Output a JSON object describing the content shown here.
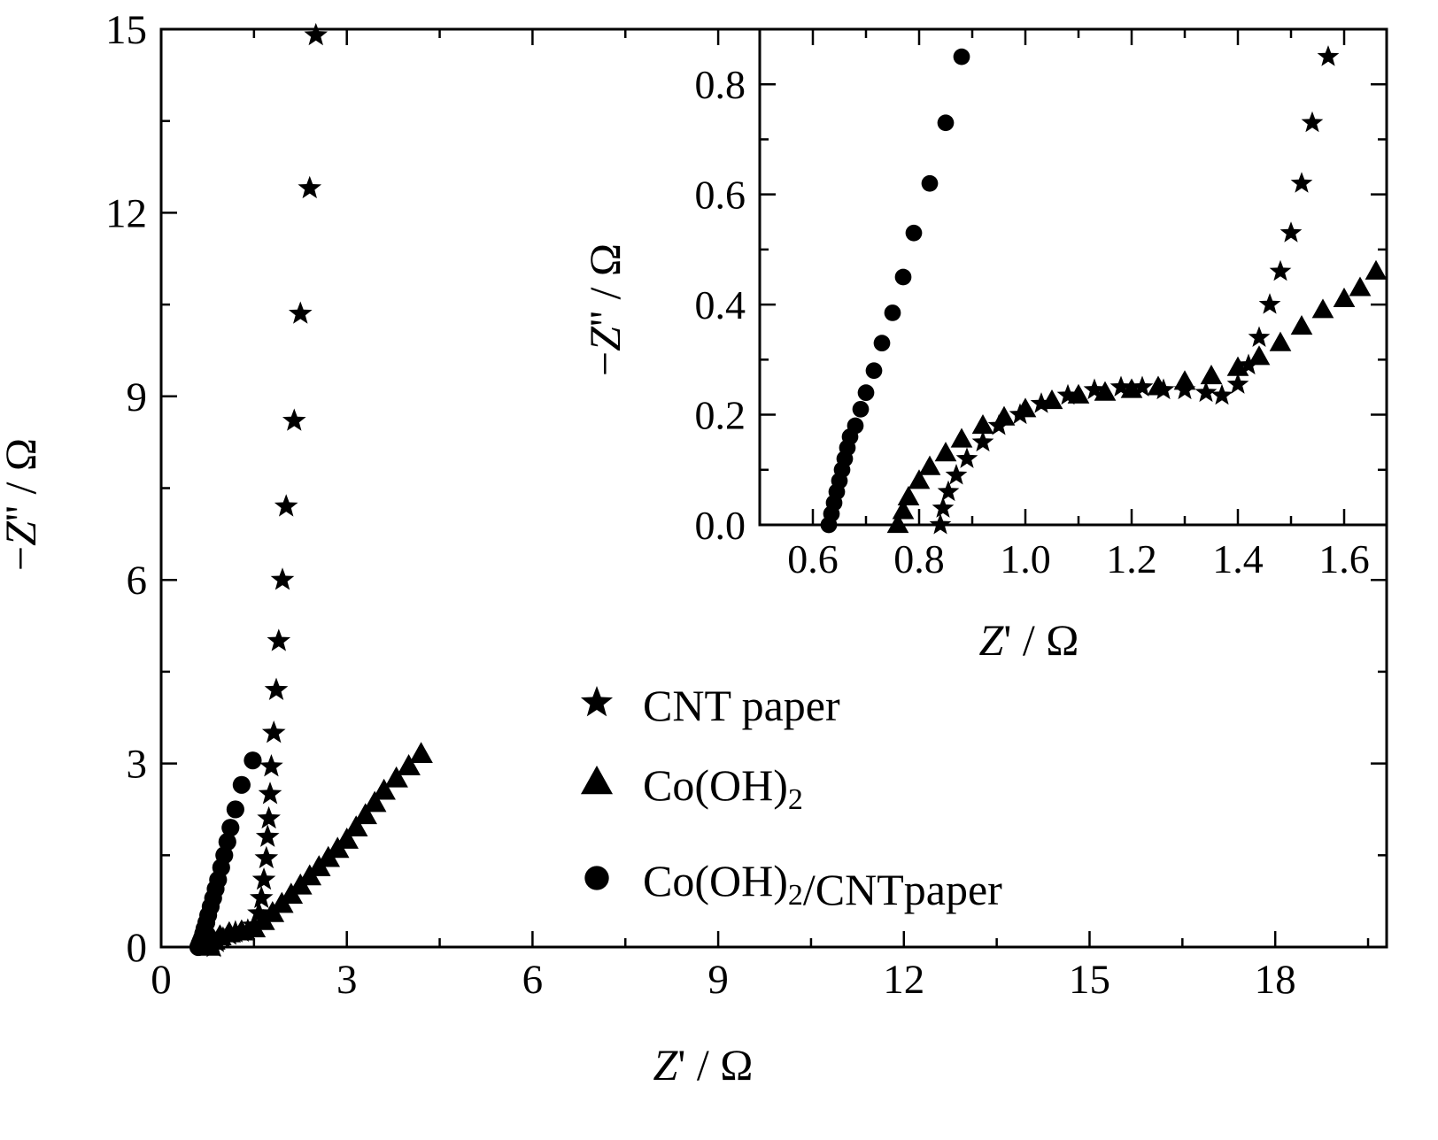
{
  "chart_data": [
    {
      "type": "scatter",
      "title": "",
      "xlabel": "Z' / Ω",
      "ylabel": "−Z'' / Ω",
      "xlim": [
        0,
        19.8
      ],
      "ylim": [
        0,
        15
      ],
      "x_ticks": [
        "0",
        "3",
        "6",
        "9",
        "12",
        "15",
        "18"
      ],
      "y_ticks": [
        "0",
        "3",
        "6",
        "9",
        "12",
        "15"
      ],
      "legend": {
        "placement": "bottom-right"
      },
      "series": [
        {
          "name": "CNT paper",
          "marker": "star",
          "color": "#000000",
          "points": [
            [
              0.85,
              0.0
            ],
            [
              0.9,
              0.08
            ],
            [
              1.0,
              0.14
            ],
            [
              1.1,
              0.2
            ],
            [
              1.2,
              0.24
            ],
            [
              1.3,
              0.25
            ],
            [
              1.4,
              0.27
            ],
            [
              1.5,
              0.35
            ],
            [
              1.58,
              0.55
            ],
            [
              1.62,
              0.8
            ],
            [
              1.66,
              1.1
            ],
            [
              1.7,
              1.45
            ],
            [
              1.72,
              1.8
            ],
            [
              1.74,
              2.1
            ],
            [
              1.76,
              2.5
            ],
            [
              1.78,
              2.95
            ],
            [
              1.82,
              3.5
            ],
            [
              1.86,
              4.2
            ],
            [
              1.9,
              5.0
            ],
            [
              1.96,
              6.0
            ],
            [
              2.02,
              7.2
            ],
            [
              2.15,
              8.6
            ],
            [
              2.25,
              10.35
            ],
            [
              2.4,
              12.4
            ],
            [
              2.5,
              14.9
            ]
          ]
        },
        {
          "name": "Co(OH)₂",
          "marker": "triangle",
          "color": "#000000",
          "points": [
            [
              0.78,
              0.0
            ],
            [
              0.85,
              0.1
            ],
            [
              0.95,
              0.17
            ],
            [
              1.1,
              0.22
            ],
            [
              1.3,
              0.25
            ],
            [
              1.5,
              0.3
            ],
            [
              1.65,
              0.42
            ],
            [
              1.8,
              0.55
            ],
            [
              1.95,
              0.7
            ],
            [
              2.1,
              0.85
            ],
            [
              2.25,
              1.0
            ],
            [
              2.4,
              1.15
            ],
            [
              2.55,
              1.3
            ],
            [
              2.7,
              1.45
            ],
            [
              2.85,
              1.6
            ],
            [
              3.0,
              1.75
            ],
            [
              3.15,
              1.95
            ],
            [
              3.3,
              2.15
            ],
            [
              3.45,
              2.35
            ],
            [
              3.6,
              2.55
            ],
            [
              3.8,
              2.75
            ],
            [
              4.0,
              2.95
            ],
            [
              4.2,
              3.15
            ]
          ]
        },
        {
          "name": "Co(OH)₂/CNTpaper",
          "marker": "circle",
          "color": "#000000",
          "points": [
            [
              0.6,
              0.0
            ],
            [
              0.62,
              0.05
            ],
            [
              0.64,
              0.1
            ],
            [
              0.66,
              0.15
            ],
            [
              0.68,
              0.22
            ],
            [
              0.7,
              0.3
            ],
            [
              0.73,
              0.4
            ],
            [
              0.76,
              0.52
            ],
            [
              0.8,
              0.66
            ],
            [
              0.84,
              0.8
            ],
            [
              0.88,
              0.95
            ],
            [
              0.92,
              1.1
            ],
            [
              0.97,
              1.3
            ],
            [
              1.02,
              1.5
            ],
            [
              1.07,
              1.72
            ],
            [
              1.12,
              1.95
            ],
            [
              1.2,
              2.25
            ],
            [
              1.3,
              2.65
            ],
            [
              1.48,
              3.05
            ]
          ]
        }
      ]
    },
    {
      "type": "scatter",
      "title": "",
      "xlabel": "Z' / Ω",
      "ylabel": "−Z'' / Ω",
      "xlim": [
        0.5,
        1.68
      ],
      "ylim": [
        0,
        0.9
      ],
      "x_ticks": [
        "0.6",
        "0.8",
        "1.0",
        "1.2",
        "1.4",
        "1.6"
      ],
      "y_ticks": [
        "0.0",
        "0.2",
        "0.4",
        "0.6",
        "0.8"
      ],
      "series": [
        {
          "name": "CNT paper",
          "marker": "star",
          "color": "#000000",
          "points": [
            [
              0.84,
              0.0
            ],
            [
              0.845,
              0.03
            ],
            [
              0.855,
              0.06
            ],
            [
              0.87,
              0.09
            ],
            [
              0.89,
              0.12
            ],
            [
              0.92,
              0.15
            ],
            [
              0.95,
              0.18
            ],
            [
              0.99,
              0.2
            ],
            [
              1.03,
              0.22
            ],
            [
              1.08,
              0.235
            ],
            [
              1.13,
              0.245
            ],
            [
              1.18,
              0.25
            ],
            [
              1.22,
              0.25
            ],
            [
              1.26,
              0.245
            ],
            [
              1.3,
              0.245
            ],
            [
              1.34,
              0.24
            ],
            [
              1.37,
              0.235
            ],
            [
              1.4,
              0.255
            ],
            [
              1.42,
              0.29
            ],
            [
              1.44,
              0.34
            ],
            [
              1.46,
              0.4
            ],
            [
              1.48,
              0.46
            ],
            [
              1.5,
              0.53
            ],
            [
              1.52,
              0.62
            ],
            [
              1.54,
              0.73
            ],
            [
              1.57,
              0.85
            ]
          ]
        },
        {
          "name": "Co(OH)₂",
          "marker": "triangle",
          "color": "#000000",
          "points": [
            [
              0.76,
              0.0
            ],
            [
              0.77,
              0.025
            ],
            [
              0.78,
              0.05
            ],
            [
              0.8,
              0.08
            ],
            [
              0.82,
              0.105
            ],
            [
              0.85,
              0.13
            ],
            [
              0.88,
              0.155
            ],
            [
              0.92,
              0.18
            ],
            [
              0.96,
              0.195
            ],
            [
              1.0,
              0.21
            ],
            [
              1.05,
              0.225
            ],
            [
              1.1,
              0.235
            ],
            [
              1.15,
              0.24
            ],
            [
              1.2,
              0.245
            ],
            [
              1.25,
              0.25
            ],
            [
              1.3,
              0.26
            ],
            [
              1.35,
              0.27
            ],
            [
              1.4,
              0.285
            ],
            [
              1.44,
              0.305
            ],
            [
              1.48,
              0.33
            ],
            [
              1.52,
              0.36
            ],
            [
              1.56,
              0.39
            ],
            [
              1.6,
              0.41
            ],
            [
              1.63,
              0.43
            ],
            [
              1.66,
              0.46
            ]
          ]
        },
        {
          "name": "Co(OH)₂/CNTpaper",
          "marker": "circle",
          "color": "#000000",
          "points": [
            [
              0.63,
              0.0
            ],
            [
              0.635,
              0.02
            ],
            [
              0.64,
              0.04
            ],
            [
              0.645,
              0.06
            ],
            [
              0.65,
              0.08
            ],
            [
              0.655,
              0.1
            ],
            [
              0.66,
              0.12
            ],
            [
              0.665,
              0.14
            ],
            [
              0.67,
              0.16
            ],
            [
              0.68,
              0.18
            ],
            [
              0.69,
              0.21
            ],
            [
              0.7,
              0.24
            ],
            [
              0.715,
              0.28
            ],
            [
              0.73,
              0.33
            ],
            [
              0.75,
              0.385
            ],
            [
              0.77,
              0.45
            ],
            [
              0.79,
              0.53
            ],
            [
              0.82,
              0.62
            ],
            [
              0.85,
              0.73
            ],
            [
              0.88,
              0.85
            ]
          ]
        }
      ]
    }
  ]
}
